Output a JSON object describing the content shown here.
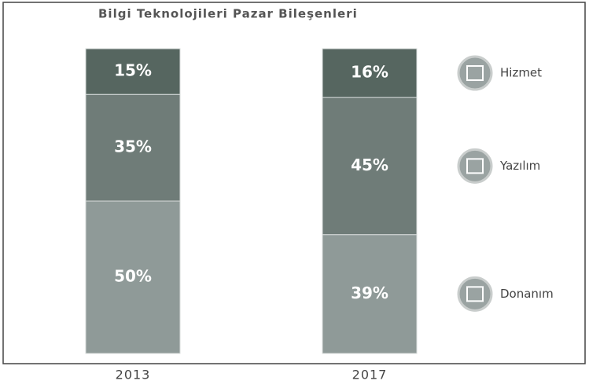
{
  "chart_data": {
    "type": "stacked_bar",
    "title": "Bilgi Teknolojileri Pazar Bileşenleri",
    "categories": [
      "2013",
      "2017"
    ],
    "series": [
      {
        "name": "Donanım",
        "color": "#8f9a98",
        "values": [
          50,
          39
        ],
        "value_labels": [
          "50%",
          "39%"
        ]
      },
      {
        "name": "Yazılım",
        "color": "#6f7c78",
        "values": [
          35,
          45
        ],
        "value_labels": [
          "35%",
          "45%"
        ]
      },
      {
        "name": "Hizmet",
        "color": "#566660",
        "values": [
          15,
          16
        ],
        "value_labels": [
          "15%",
          "16%"
        ]
      }
    ],
    "legend": "right"
  }
}
